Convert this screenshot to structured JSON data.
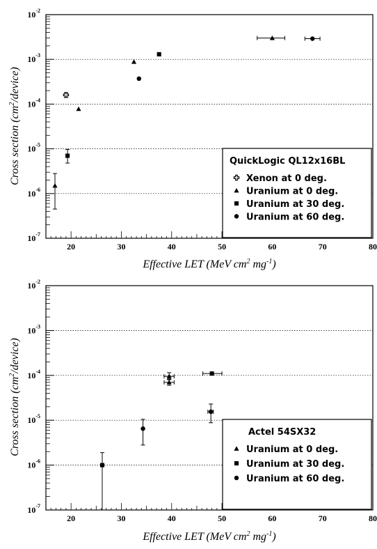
{
  "chart_data": [
    {
      "type": "scatter",
      "ylabel": {
        "base": "Cross section (cm",
        "sup": "2",
        "tail": "/device)"
      },
      "xlabel": {
        "base": "Effective LET (MeV cm",
        "sup1": "2",
        "mid": " mg",
        "sup2": "-1",
        "tail": ")"
      },
      "xlim": [
        15,
        80
      ],
      "x_ticks": [
        20,
        30,
        40,
        50,
        60,
        70,
        80
      ],
      "ylim_log10": [
        -7,
        -2
      ],
      "y_ticks_base": "10",
      "y_ticks_exp": [
        "-7",
        "-6",
        "-5",
        "-4",
        "-3",
        "-2"
      ],
      "y_scale": "log",
      "grid": "horizontal dotted",
      "legend_placement": "bottom-right",
      "legend_title": "QuickLogic QL12x16BL",
      "series": [
        {
          "name": "Xenon at 0 deg.",
          "marker": "open-cross",
          "points": [
            {
              "x": 19,
              "y": 0.00016,
              "ylo": 0.00014,
              "yhi": 0.00018
            }
          ]
        },
        {
          "name": "Uranium at 0 deg.",
          "marker": "triangle",
          "points": [
            {
              "x": 16.8,
              "y": 1.5e-06,
              "ylo": 4.5e-07,
              "yhi": 2.8e-06
            },
            {
              "x": 21.5,
              "y": 7.8e-05
            },
            {
              "x": 32.5,
              "y": 0.00088
            },
            {
              "x": 60,
              "y": 0.003,
              "xlo": 57,
              "xhi": 62.5
            }
          ]
        },
        {
          "name": "Uranium at 30 deg.",
          "marker": "square",
          "points": [
            {
              "x": 19.3,
              "y": 7e-06,
              "ylo": 4.8e-06,
              "yhi": 9.7e-06
            },
            {
              "x": 37.5,
              "y": 0.0013
            }
          ]
        },
        {
          "name": "Uranium at 60 deg.",
          "marker": "circle",
          "points": [
            {
              "x": 33.5,
              "y": 0.00037
            },
            {
              "x": 68,
              "y": 0.0029,
              "xlo": 66.5,
              "xhi": 69.5
            }
          ]
        }
      ]
    },
    {
      "type": "scatter",
      "ylabel": {
        "base": "Cross section (cm",
        "sup": "2",
        "tail": "/device)"
      },
      "xlabel": {
        "base": "Effective LET (MeV cm",
        "sup1": "2",
        "mid": " mg",
        "sup2": "-1",
        "tail": ")"
      },
      "xlim": [
        15,
        80
      ],
      "x_ticks": [
        20,
        30,
        40,
        50,
        60,
        70,
        80
      ],
      "ylim_log10": [
        -7,
        -2
      ],
      "y_ticks_base": "10",
      "y_ticks_exp": [
        "-7",
        "-6",
        "-5",
        "-4",
        "-3",
        "-2"
      ],
      "y_scale": "log",
      "grid": "horizontal dotted",
      "legend_placement": "bottom-right",
      "legend_title": "Actel 54SX32",
      "series": [
        {
          "name": "Uranium at 0 deg.",
          "marker": "triangle",
          "points": [
            {
              "x": 39.5,
              "y": 9.5e-05,
              "xlo": 38.5,
              "xhi": 40.5,
              "ylo": 8.3e-05,
              "yhi": 0.000115
            },
            {
              "x": 39.5,
              "y": 7e-05,
              "xlo": 38.5,
              "xhi": 40.5,
              "ylo": 6e-05,
              "yhi": 8e-05
            }
          ]
        },
        {
          "name": "Uranium at 30 deg.",
          "marker": "square",
          "points": [
            {
              "x": 26.2,
              "y": 1e-06,
              "ylo": 1e-07,
              "yhi": 1.9e-06
            },
            {
              "x": 48,
              "y": 0.00011,
              "xlo": 46.2,
              "xhi": 50
            }
          ]
        },
        {
          "name": "Uranium at 60 deg.",
          "marker": "circle",
          "points": [
            {
              "x": 34.3,
              "y": 6.5e-06,
              "ylo": 2.8e-06,
              "yhi": 1.05e-05
            },
            {
              "x": 47.8,
              "y": 1.55e-05,
              "xlo": 47.2,
              "xhi": 48.3,
              "ylo": 8.8e-06,
              "yhi": 2.3e-05
            }
          ]
        }
      ]
    }
  ]
}
